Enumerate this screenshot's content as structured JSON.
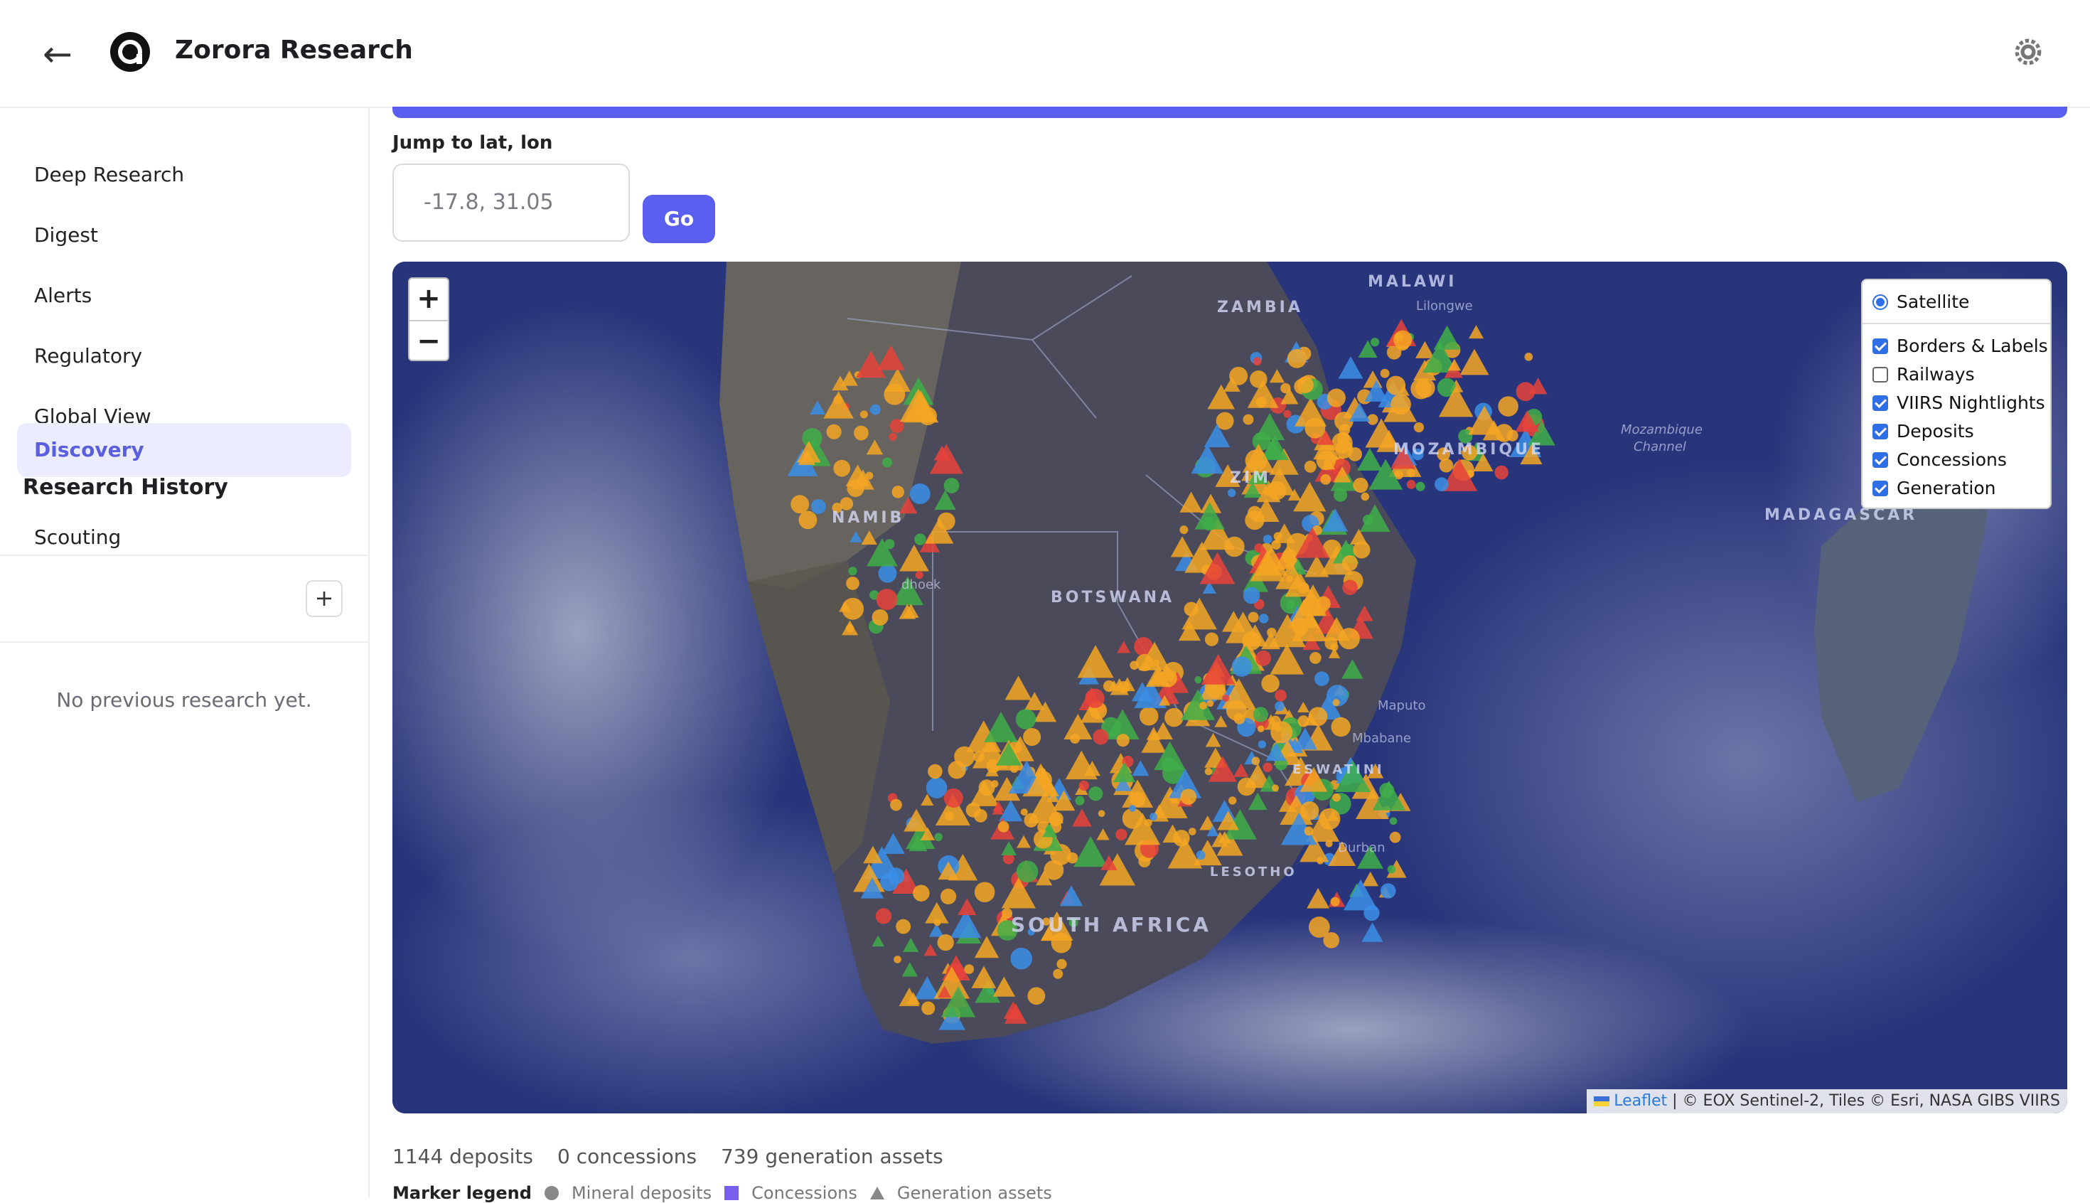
{
  "header": {
    "brand": "Zorora Research",
    "back_icon": "←"
  },
  "sidebar": {
    "items": [
      {
        "label": "Deep Research",
        "active": false
      },
      {
        "label": "Digest",
        "active": false
      },
      {
        "label": "Alerts",
        "active": false
      },
      {
        "label": "Regulatory",
        "active": false
      },
      {
        "label": "Global View",
        "active": false
      },
      {
        "label": "Discovery",
        "active": true
      },
      {
        "label": "Scouting",
        "active": false
      }
    ],
    "history_title": "Research History",
    "history_add": "+",
    "history_empty": "No previous research yet."
  },
  "jump": {
    "label": "Jump to lat, lon",
    "placeholder": "-17.8, 31.05",
    "go_label": "Go"
  },
  "map": {
    "zoom_in": "+",
    "zoom_out": "−",
    "layers": {
      "base": {
        "label": "Satellite",
        "selected": true
      },
      "overlays": [
        {
          "label": "Borders & Labels",
          "checked": true
        },
        {
          "label": "Railways",
          "checked": false
        },
        {
          "label": "VIIRS Nightlights",
          "checked": true
        },
        {
          "label": "Deposits",
          "checked": true
        },
        {
          "label": "Concessions",
          "checked": true
        },
        {
          "label": "Generation",
          "checked": true
        }
      ]
    },
    "labels": {
      "zambia": "ZAMBIA",
      "malawi": "MALAWI",
      "mozambique": "MOZAMBIQUE",
      "namibia": "NAMIB",
      "botswana": "BOTSWANA",
      "zimbabwe": "ZIM",
      "madagascar": "MADAGASCAR",
      "south_africa": "SOUTH AFRICA",
      "eswatini": "ESWATINI",
      "lesotho": "LESOTHO",
      "lilongwe": "Lilongwe",
      "maputo": "Maputo",
      "mbabane": "Mbabane",
      "durban": "Durban",
      "mozambique_channel_1": "Mozambique",
      "mozambique_channel_2": "Channel",
      "windhoek": "dhoek"
    },
    "attribution": {
      "leaflet": "Leaflet",
      "rest": " | © EOX Sentinel-2, Tiles © Esri, NASA GIBS VIIRS"
    },
    "colors": {
      "deposit": "#f5a623",
      "deposit_red": "#e8423a",
      "generation_blue": "#3b8ee8",
      "green": "#3fae49",
      "concession": "#7a5ef0"
    }
  },
  "stats": {
    "deposits": "1144 deposits",
    "concessions": "0 concessions",
    "generation": "739 generation assets"
  },
  "legend": {
    "title": "Marker legend",
    "mineral": "Mineral deposits",
    "concessions": "Concessions",
    "generation": "Generation assets"
  }
}
